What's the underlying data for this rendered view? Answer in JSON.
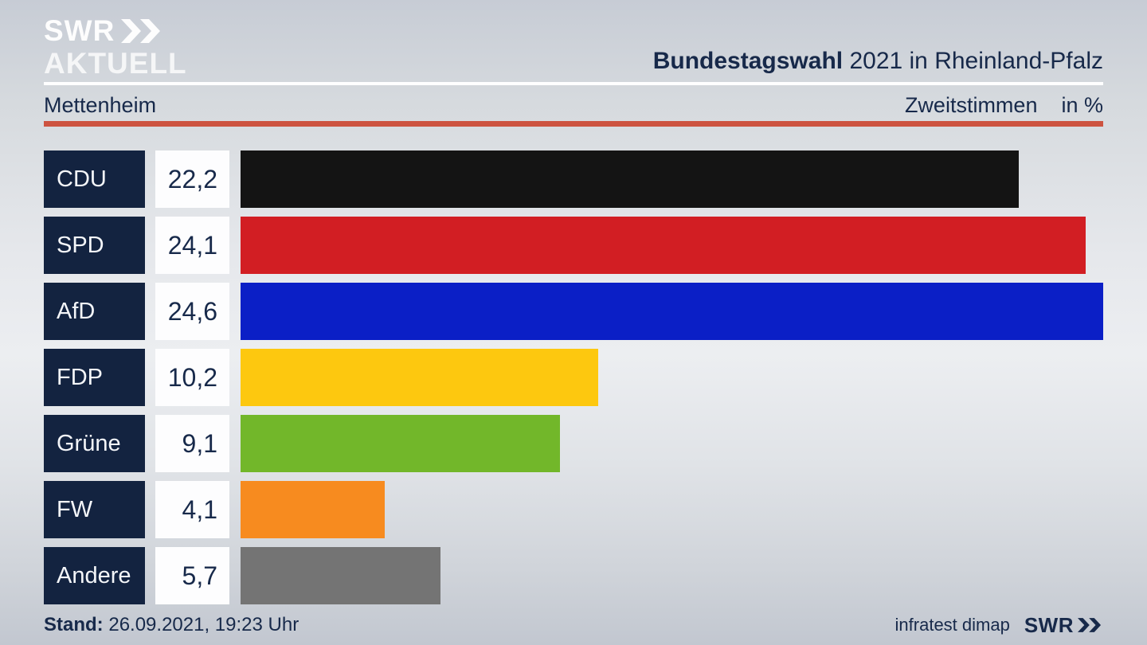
{
  "brand": {
    "line1": "SWR",
    "line2": "AKTUELL"
  },
  "header": {
    "title_bold": "Bundestagswahl",
    "title_rest": " 2021 in Rheinland-Pfalz",
    "region": "Mettenheim",
    "measure": "Zweitstimmen",
    "unit": "in %"
  },
  "footer": {
    "stand_label": "Stand:",
    "stand_value": " 26.09.2021, 19:23 Uhr",
    "source": "infratest dimap",
    "network": "SWR"
  },
  "colors": {
    "background_top": "#c7ccd5",
    "background_mid": "#eceef1",
    "background_bottom": "#c2c7d0",
    "navy_text": "#17294a",
    "party_box": "#132340",
    "red_rule": "#cd5340",
    "white_rule": "#ffffff"
  },
  "chart_data": {
    "type": "bar",
    "orientation": "horizontal",
    "title": "Bundestagswahl 2021 in Rheinland-Pfalz",
    "subtitle": "Mettenheim — Zweitstimmen in %",
    "categories": [
      "CDU",
      "SPD",
      "AfD",
      "FDP",
      "Grüne",
      "FW",
      "Andere"
    ],
    "values": [
      22.2,
      24.1,
      24.6,
      10.2,
      9.1,
      4.1,
      5.7
    ],
    "value_labels": [
      "22,2",
      "24,1",
      "24,6",
      "10,2",
      "9,1",
      "4,1",
      "5,7"
    ],
    "bar_colors": [
      "#141414",
      "#d21e23",
      "#0b1fc6",
      "#fdc80f",
      "#72b72a",
      "#f78b1f",
      "#747474"
    ],
    "xmax": 24.6,
    "unit": "%",
    "grid": false,
    "legend": false
  }
}
